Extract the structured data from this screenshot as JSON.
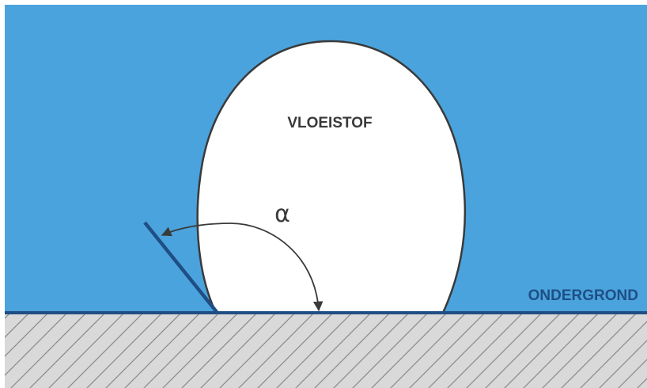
{
  "diagram": {
    "liquid_label": "VLOEISTOF",
    "substrate_label": "ONDERGROND",
    "angle_symbol": "α",
    "colors": {
      "surroundings": "#4aa3dc",
      "droplet_fill": "#ffffff",
      "droplet_outline": "#3a3a3a",
      "substrate_fill": "#d9d9d9",
      "hatch": "#8c8c8c",
      "surface_line": "#1f4e85",
      "tangent_line": "#1f4e85",
      "angle_arrow": "#3a3a3a"
    }
  }
}
